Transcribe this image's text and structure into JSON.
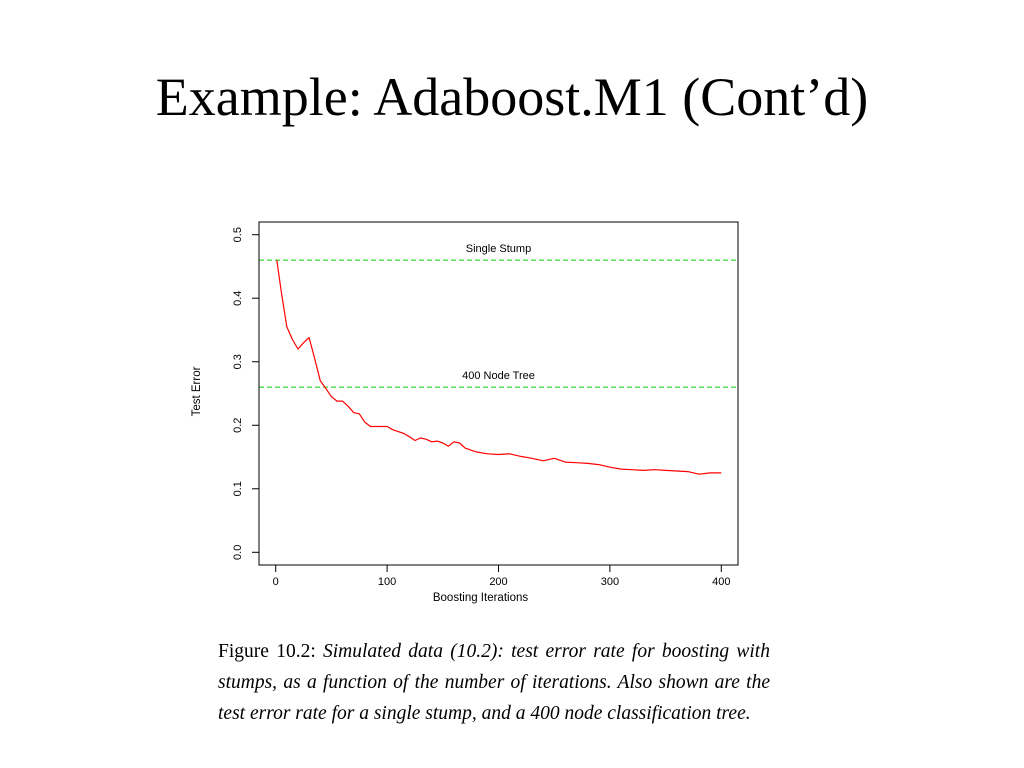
{
  "slide": {
    "title": "Example: Adaboost.M1 (Cont’d)"
  },
  "caption": {
    "label": "Figure 10.2:",
    "text": "Simulated data (10.2): test error rate for boosting with stumps, as a function of the number of iterations. Also shown are the test error rate for a single stump, and a 400 node classification tree."
  },
  "chart_data": {
    "type": "line",
    "title": "",
    "xlabel": "Boosting Iterations",
    "ylabel": "Test Error",
    "xlim": [
      -15,
      415
    ],
    "ylim": [
      -0.02,
      0.52
    ],
    "xticks": [
      0,
      100,
      200,
      300,
      400
    ],
    "yticks": [
      0.0,
      0.1,
      0.2,
      0.3,
      0.4,
      0.5
    ],
    "xtick_labels": [
      "0",
      "100",
      "200",
      "300",
      "400"
    ],
    "ytick_labels": [
      "0.0",
      "0.1",
      "0.2",
      "0.3",
      "0.4",
      "0.5"
    ],
    "grid": false,
    "series": [
      {
        "color": "#ff0000",
        "x": [
          1,
          5,
          10,
          15,
          20,
          25,
          30,
          35,
          40,
          45,
          50,
          55,
          60,
          65,
          70,
          75,
          80,
          85,
          90,
          95,
          100,
          105,
          110,
          115,
          120,
          125,
          130,
          135,
          140,
          145,
          150,
          155,
          160,
          165,
          170,
          180,
          190,
          200,
          210,
          220,
          230,
          240,
          250,
          260,
          270,
          280,
          290,
          300,
          310,
          320,
          330,
          340,
          350,
          360,
          370,
          380,
          390,
          400
        ],
        "y": [
          0.46,
          0.41,
          0.355,
          0.335,
          0.32,
          0.33,
          0.338,
          0.305,
          0.27,
          0.258,
          0.245,
          0.238,
          0.238,
          0.23,
          0.22,
          0.218,
          0.205,
          0.198,
          0.198,
          0.198,
          0.198,
          0.193,
          0.19,
          0.187,
          0.182,
          0.176,
          0.18,
          0.178,
          0.174,
          0.175,
          0.172,
          0.167,
          0.174,
          0.172,
          0.164,
          0.158,
          0.155,
          0.154,
          0.155,
          0.151,
          0.148,
          0.144,
          0.148,
          0.142,
          0.141,
          0.14,
          0.138,
          0.134,
          0.131,
          0.13,
          0.129,
          0.13,
          0.129,
          0.128,
          0.127,
          0.123,
          0.125,
          0.125
        ]
      }
    ],
    "reference_lines": [
      {
        "label": "Single Stump",
        "y": 0.46,
        "color": "#00cc00"
      },
      {
        "label": "400 Node Tree",
        "y": 0.26,
        "color": "#00cc00"
      }
    ]
  }
}
